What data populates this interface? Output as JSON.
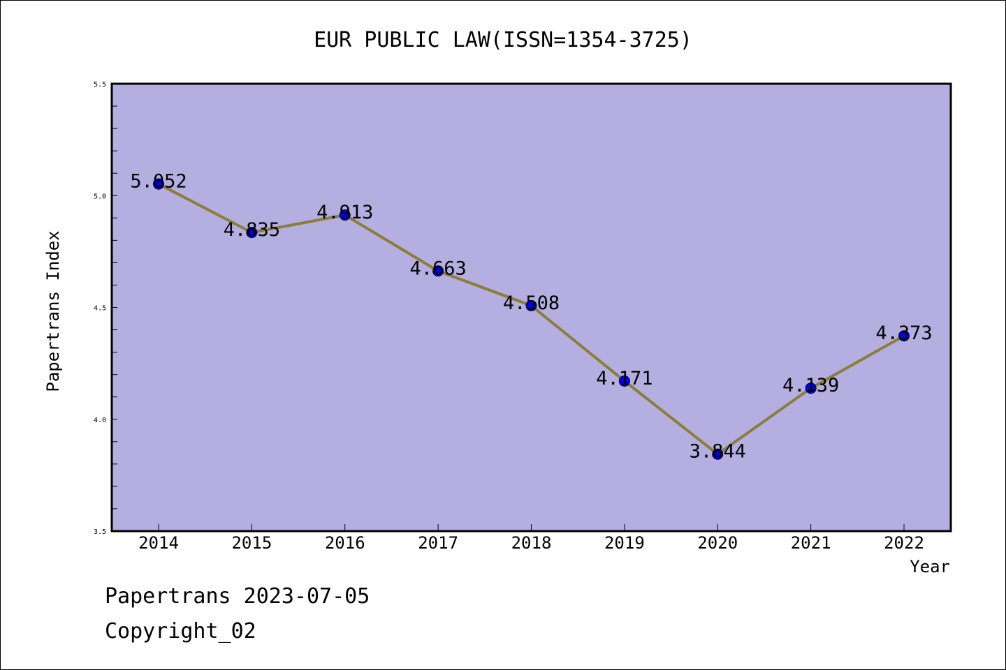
{
  "chart_data": {
    "type": "line",
    "title": "EUR PUBLIC LAW(ISSN=1354-3725)",
    "xlabel": "Year",
    "ylabel": "Papertrans Index",
    "categories": [
      "2014",
      "2015",
      "2016",
      "2017",
      "2018",
      "2019",
      "2020",
      "2021",
      "2022"
    ],
    "values": [
      5.052,
      4.835,
      4.913,
      4.663,
      4.508,
      4.171,
      3.844,
      4.139,
      4.373
    ],
    "value_labels": [
      "5.052",
      "4.835",
      "4.913",
      "4.663",
      "4.508",
      "4.171",
      "3.844",
      "4.139",
      "4.373"
    ],
    "ylim": [
      3.5,
      5.5
    ],
    "yticks": [
      "3.5",
      "4.0",
      "4.5",
      "5.0",
      "5.5"
    ],
    "grid": false,
    "colors": {
      "plot_background": "#b5aee1",
      "line": "#8b7d3a",
      "marker": "#0000ee"
    }
  },
  "footer": {
    "line1": "Papertrans 2023-07-05",
    "line2": "Copyright_02"
  }
}
